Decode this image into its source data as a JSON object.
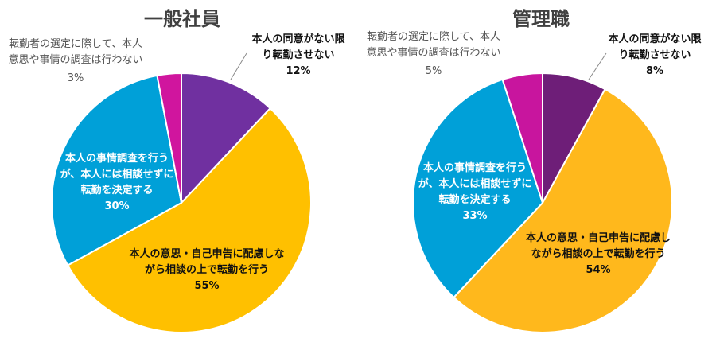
{
  "chart_data": [
    {
      "type": "pie",
      "title": "一般社員",
      "colors": [
        "#7030A0",
        "#FFC000",
        "#00A0D8",
        "#D0159E"
      ],
      "slices": [
        {
          "label_lines": [
            "本人の同意がない限",
            "り転勤させない"
          ],
          "value": 12,
          "pct_text": "12%"
        },
        {
          "label_lines": [
            "本人の意思・自己申告に配慮しな",
            "がら相談の上で転勤を行う"
          ],
          "value": 55,
          "pct_text": "55%"
        },
        {
          "label_lines": [
            "本人の事情調査を行う",
            "が、本人には相談せずに",
            "転勤を決定する"
          ],
          "value": 30,
          "pct_text": "30%"
        },
        {
          "label_lines": [
            "転勤者の選定に際して、本人",
            "意思や事情の調査は行わない"
          ],
          "value": 3,
          "pct_text": "3%"
        }
      ]
    },
    {
      "type": "pie",
      "title": "管理職",
      "colors": [
        "#6E1E78",
        "#FFB81C",
        "#00A0D8",
        "#C8159E"
      ],
      "slices": [
        {
          "label_lines": [
            "本人の同意がない限",
            "り転勤させない"
          ],
          "value": 8,
          "pct_text": "8%"
        },
        {
          "label_lines": [
            "本人の意思・自己申告に配慮し",
            "ながら相談の上で転勤を行う"
          ],
          "value": 54,
          "pct_text": "54%"
        },
        {
          "label_lines": [
            "本人の事情調査を行う",
            "が、本人には相談せずに",
            "転勤を決定する"
          ],
          "value": 33,
          "pct_text": "33%"
        },
        {
          "label_lines": [
            "転勤者の選定に際して、本人",
            "意思や事情の調査は行わない"
          ],
          "value": 5,
          "pct_text": "5%"
        }
      ]
    }
  ]
}
